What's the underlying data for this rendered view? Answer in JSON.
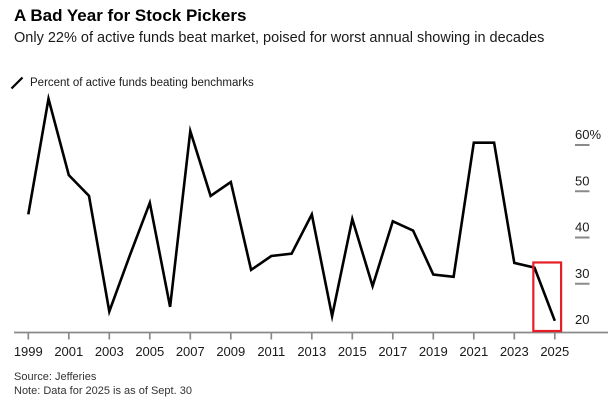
{
  "header": {
    "title": "A Bad Year for Stock Pickers",
    "subtitle": "Only 22% of active funds beat market, poised for worst annual showing in decades"
  },
  "legend": {
    "icon": "line-slash-icon",
    "label": "Percent of active funds beating benchmarks"
  },
  "chart_data": {
    "type": "line",
    "series_name": "Percent of active funds beating benchmarks",
    "unit": "%",
    "x": [
      1999,
      2000,
      2001,
      2002,
      2003,
      2004,
      2005,
      2006,
      2007,
      2008,
      2009,
      2010,
      2011,
      2012,
      2013,
      2014,
      2015,
      2016,
      2017,
      2018,
      2019,
      2020,
      2021,
      2022,
      2023,
      2024,
      2025
    ],
    "values": [
      45,
      70,
      53.5,
      49,
      24,
      36,
      47.5,
      25,
      63,
      49,
      52,
      33,
      36,
      36.5,
      45,
      23,
      44,
      29.5,
      43.5,
      41.5,
      32,
      31.5,
      60.5,
      60.5,
      34.5,
      33.5,
      22
    ],
    "ylim": [
      19.5,
      72.5
    ],
    "yticks": [
      20,
      30,
      40,
      50,
      60
    ],
    "ytick_labels": [
      "20",
      "30",
      "40",
      "50",
      "60%"
    ],
    "xticks": [
      1999,
      2001,
      2003,
      2005,
      2007,
      2009,
      2011,
      2013,
      2015,
      2017,
      2019,
      2021,
      2023,
      2025
    ],
    "grid": false,
    "y_axis_side": "right",
    "legend_position": "top-left",
    "line_color": "#000000",
    "highlight": {
      "shape": "box",
      "years": [
        2024,
        2025
      ],
      "top_value": 34.6,
      "color": "#e61e25"
    }
  },
  "footer": {
    "source": "Source: Jefferies",
    "note": "Note: Data for 2025 is as of Sept. 30"
  },
  "colors": {
    "line": "#000000",
    "axis": "#8a8a8a",
    "highlight": "#e61e25",
    "text": "#000000",
    "footer_text": "#333333"
  }
}
